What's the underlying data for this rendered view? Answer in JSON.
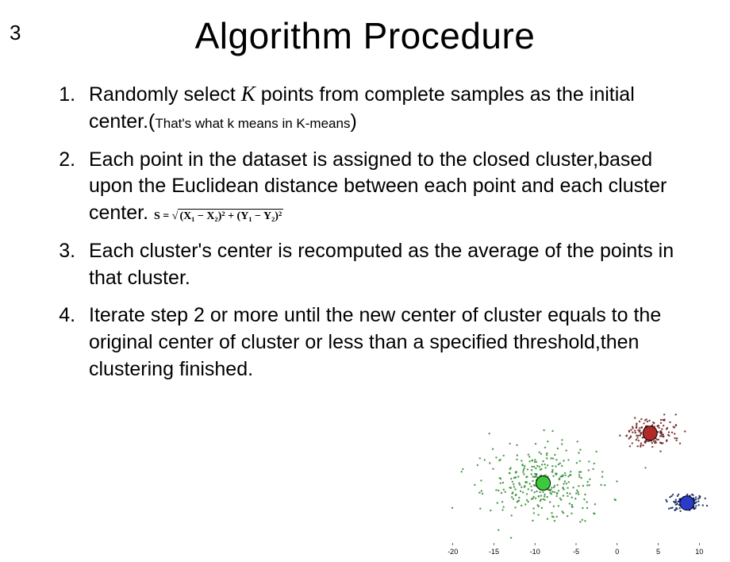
{
  "page_number": "3",
  "title": "Algorithm Procedure",
  "steps": [
    {
      "pre": "Randomly select ",
      "var": "K",
      "post_var": " points from complete samples as the initial center.(",
      "paren": "That's what k means in K-means",
      "close": ")"
    },
    {
      "text": "Each point in the dataset is assigned to the closed cluster,based upon the Euclidean distance between each point and each cluster center. ",
      "has_formula": true
    },
    {
      "text": "Each cluster's center is recomputed as the average of the points in that cluster."
    },
    {
      "text": "Iterate step 2 or more until the new center of cluster equals to the original center of cluster or less than a specified threshold,then clustering finished."
    }
  ],
  "formula": {
    "lhs": "S = ",
    "body": "(X₁ − X₂)² + (Y₁ − Y₂)²"
  },
  "scatter": {
    "type": "scatter",
    "background_color": "#ffffff",
    "xlim": [
      -22,
      12
    ],
    "ylim": [
      -14,
      14
    ],
    "x_ticks": [
      -20,
      -15,
      -10,
      -5,
      0,
      5,
      10
    ],
    "clusters": [
      {
        "name": "green",
        "color": "#2e8b2e",
        "centroid": [
          -9,
          -2
        ],
        "centroid_color": "#3cc93c",
        "spread": 8,
        "n": 320
      },
      {
        "name": "red",
        "color": "#6b1a1a",
        "centroid": [
          4,
          8
        ],
        "centroid_color": "#b02a2a",
        "spread": 3.2,
        "n": 160
      },
      {
        "name": "blue",
        "color": "#0b1a5a",
        "centroid": [
          8.5,
          -6
        ],
        "centroid_color": "#2a3bc9",
        "spread": 2.2,
        "n": 110
      }
    ],
    "point_radius": 1.2,
    "centroid_radius": 9,
    "centroid_stroke": "#000000"
  },
  "styling": {
    "title_fontsize": 46,
    "body_fontsize": 25,
    "paren_fontsize": 17,
    "formula_fontsize": 14,
    "text_color": "#000000",
    "background": "#ffffff"
  }
}
